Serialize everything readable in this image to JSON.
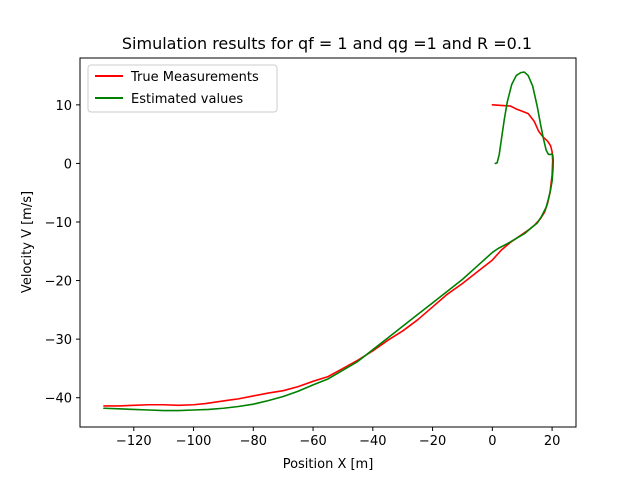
{
  "chart_data": {
    "type": "line",
    "title": "Simulation results for qf = 1 and qg =1 and  R =0.1",
    "xlabel": "Position X [m]",
    "ylabel": "Velocity V [m/s]",
    "xlim": [
      -138,
      28
    ],
    "ylim": [
      -45,
      18
    ],
    "xticks": [
      -120,
      -100,
      -80,
      -60,
      -40,
      -20,
      0,
      20
    ],
    "yticks": [
      -40,
      -30,
      -20,
      -10,
      0,
      10
    ],
    "xtick_labels": [
      "−120",
      "−100",
      "−80",
      "−60",
      "−40",
      "−20",
      "0",
      "20"
    ],
    "ytick_labels": [
      "−40",
      "−30",
      "−20",
      "−10",
      "0",
      "10"
    ],
    "grid": false,
    "legend_position": "upper-left",
    "series": [
      {
        "name": "True Measurements",
        "color": "#ff0000",
        "points": [
          [
            0,
            10.0
          ],
          [
            3,
            9.9
          ],
          [
            6,
            9.8
          ],
          [
            8,
            9.3
          ],
          [
            10,
            8.9
          ],
          [
            12,
            8.5
          ],
          [
            14,
            7.2
          ],
          [
            15.5,
            5.5
          ],
          [
            17,
            4.5
          ],
          [
            18.5,
            3.8
          ],
          [
            19.5,
            3.0
          ],
          [
            20,
            2.0
          ],
          [
            20.2,
            0.5
          ],
          [
            20.0,
            -2.0
          ],
          [
            19.3,
            -5.0
          ],
          [
            18.5,
            -6.8
          ],
          [
            17.5,
            -8.3
          ],
          [
            16,
            -9.5
          ],
          [
            14,
            -10.6
          ],
          [
            12,
            -11.4
          ],
          [
            10,
            -12.1
          ],
          [
            6,
            -13.5
          ],
          [
            3,
            -14.8
          ],
          [
            0,
            -16.5
          ],
          [
            -5,
            -18.5
          ],
          [
            -10,
            -20.5
          ],
          [
            -15,
            -22.3
          ],
          [
            -20,
            -24.5
          ],
          [
            -25,
            -26.7
          ],
          [
            -30,
            -28.6
          ],
          [
            -35,
            -30.2
          ],
          [
            -40,
            -32.0
          ],
          [
            -45,
            -33.6
          ],
          [
            -50,
            -35.0
          ],
          [
            -55,
            -36.4
          ],
          [
            -60,
            -37.2
          ],
          [
            -65,
            -38.1
          ],
          [
            -70,
            -38.8
          ],
          [
            -75,
            -39.2
          ],
          [
            -80,
            -39.7
          ],
          [
            -85,
            -40.2
          ],
          [
            -88,
            -40.4
          ],
          [
            -92,
            -40.7
          ],
          [
            -96,
            -41.0
          ],
          [
            -100,
            -41.2
          ],
          [
            -105,
            -41.3
          ],
          [
            -110,
            -41.2
          ],
          [
            -115,
            -41.2
          ],
          [
            -120,
            -41.3
          ],
          [
            -125,
            -41.4
          ],
          [
            -130,
            -41.4
          ]
        ]
      },
      {
        "name": "Estimated values",
        "color": "#008000",
        "points": [
          [
            1,
            0.0
          ],
          [
            1.6,
            0.1
          ],
          [
            2.3,
            1.5
          ],
          [
            3,
            4.0
          ],
          [
            4,
            7.5
          ],
          [
            5,
            10.5
          ],
          [
            6.5,
            13.5
          ],
          [
            8,
            15.0
          ],
          [
            9.5,
            15.5
          ],
          [
            10.7,
            15.6
          ],
          [
            12,
            15.0
          ],
          [
            13.5,
            13.2
          ],
          [
            15,
            9.8
          ],
          [
            16.2,
            6.5
          ],
          [
            17.2,
            4.0
          ],
          [
            18,
            2.3
          ],
          [
            18.7,
            1.6
          ],
          [
            19.3,
            1.5
          ],
          [
            19.8,
            1.6
          ],
          [
            20.2,
            1.5
          ],
          [
            20.4,
            0.5
          ],
          [
            20.3,
            -1.0
          ],
          [
            20.0,
            -3.0
          ],
          [
            19.5,
            -4.5
          ],
          [
            18.8,
            -6.0
          ],
          [
            18.0,
            -7.5
          ],
          [
            16.5,
            -9.0
          ],
          [
            15,
            -10.2
          ],
          [
            13,
            -11.0
          ],
          [
            11,
            -11.9
          ],
          [
            8,
            -12.8
          ],
          [
            5,
            -13.7
          ],
          [
            2,
            -14.5
          ],
          [
            0,
            -15.2
          ],
          [
            -5,
            -17.5
          ],
          [
            -10,
            -19.8
          ],
          [
            -15,
            -21.8
          ],
          [
            -20,
            -23.8
          ],
          [
            -25,
            -25.8
          ],
          [
            -30,
            -27.8
          ],
          [
            -35,
            -29.8
          ],
          [
            -40,
            -31.8
          ],
          [
            -45,
            -33.8
          ],
          [
            -50,
            -35.3
          ],
          [
            -55,
            -36.8
          ],
          [
            -60,
            -37.8
          ],
          [
            -65,
            -38.9
          ],
          [
            -70,
            -39.8
          ],
          [
            -75,
            -40.5
          ],
          [
            -80,
            -41.1
          ],
          [
            -85,
            -41.5
          ],
          [
            -90,
            -41.8
          ],
          [
            -95,
            -42.0
          ],
          [
            -100,
            -42.1
          ],
          [
            -105,
            -42.2
          ],
          [
            -110,
            -42.2
          ],
          [
            -115,
            -42.1
          ],
          [
            -120,
            -42.0
          ],
          [
            -125,
            -41.9
          ],
          [
            -130,
            -41.8
          ]
        ]
      }
    ]
  }
}
